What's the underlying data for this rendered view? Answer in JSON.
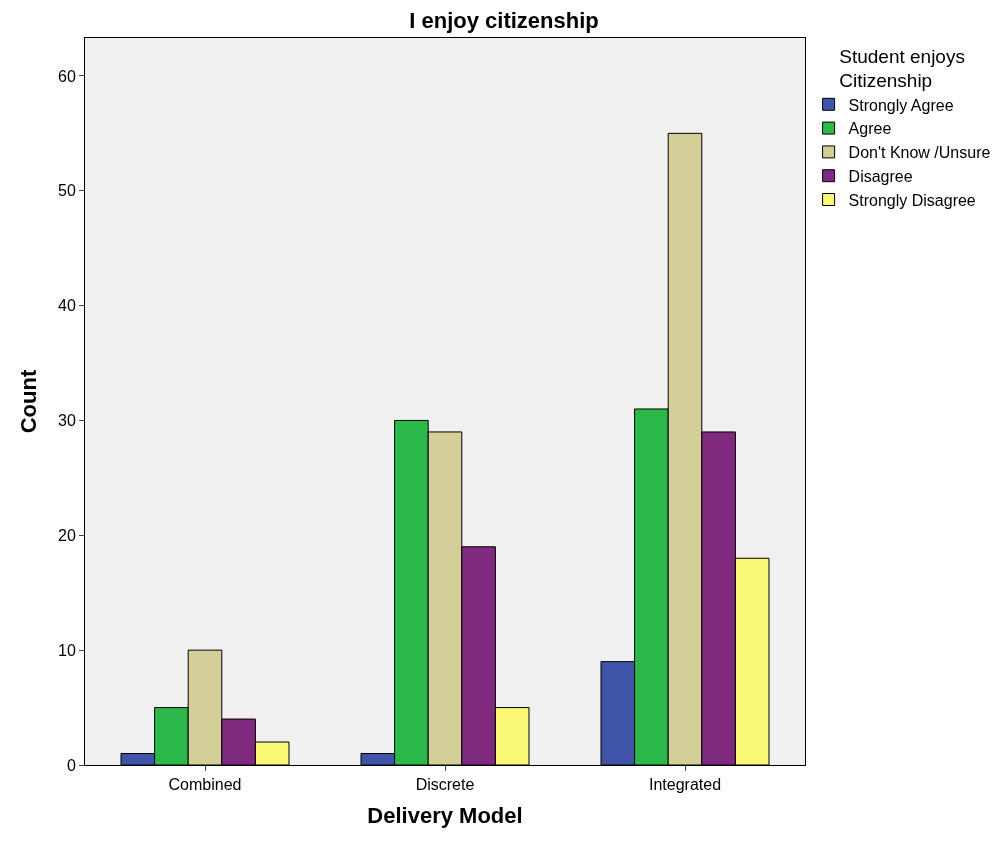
{
  "chart_data": {
    "type": "bar",
    "title": "I enjoy citizenship",
    "xlabel": "Delivery Model",
    "ylabel": "Count",
    "legend_title": "Student enjoys\nCitizenship",
    "categories": [
      "Combined",
      "Discrete",
      "Integrated"
    ],
    "series": [
      {
        "name": "Strongly Agree",
        "color": "#3f54a8",
        "values": [
          1,
          1,
          9
        ]
      },
      {
        "name": "Agree",
        "color": "#2db84a",
        "values": [
          5,
          30,
          31
        ]
      },
      {
        "name": "Don't Know /Unsure",
        "color": "#d4cf98",
        "values": [
          10,
          29,
          55
        ]
      },
      {
        "name": "Disagree",
        "color": "#7f2a7f",
        "values": [
          4,
          19,
          29
        ]
      },
      {
        "name": "Strongly Disagree",
        "color": "#fbf876",
        "values": [
          2,
          5,
          18
        ]
      }
    ],
    "ylim": [
      0,
      63.3
    ],
    "yticks": [
      0,
      10,
      20,
      30,
      40,
      50,
      60
    ],
    "grid": false,
    "legend": "top right"
  }
}
